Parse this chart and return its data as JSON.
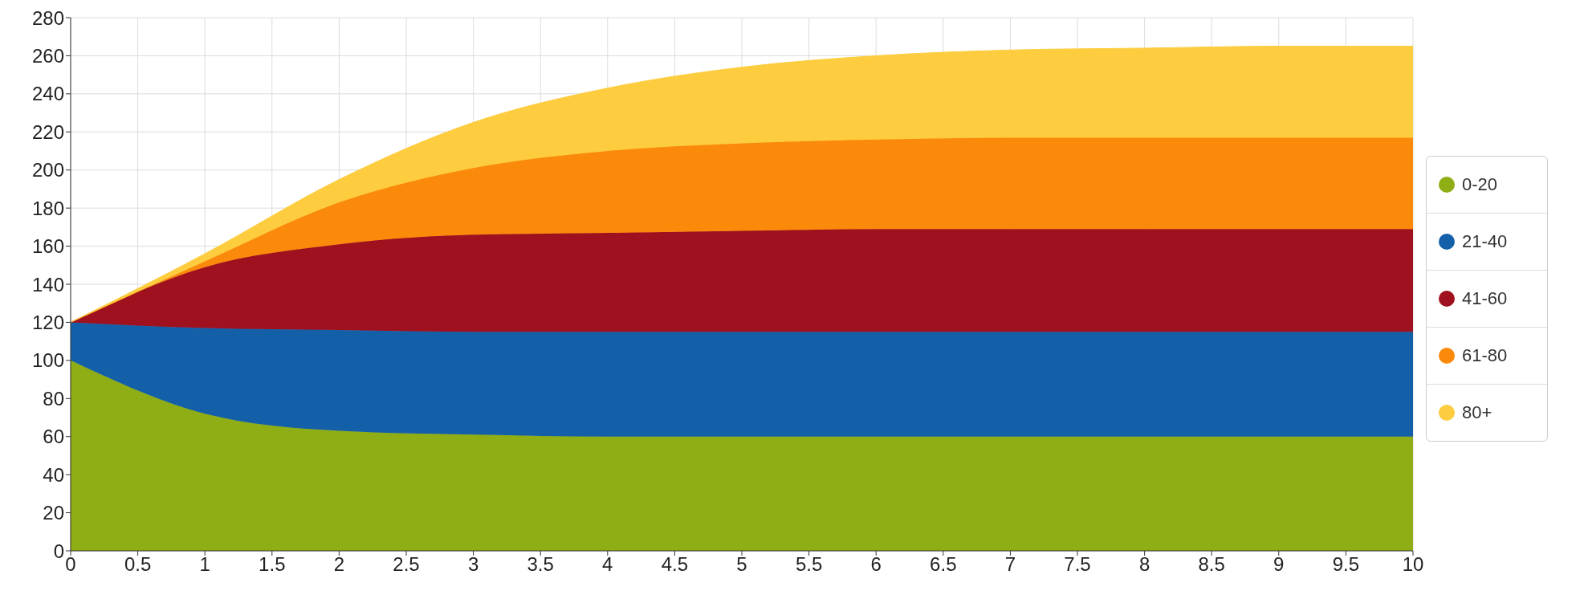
{
  "chart_data": {
    "type": "area",
    "stacked": true,
    "x": [
      0,
      1,
      2,
      3,
      4,
      5,
      6,
      7,
      8,
      9,
      10
    ],
    "series": [
      {
        "name": "0-20",
        "color": "#8fad15",
        "values": [
          100,
          72,
          63,
          61,
          60,
          60,
          60,
          60,
          60,
          60,
          60
        ]
      },
      {
        "name": "21-40",
        "color": "#1460a8",
        "values": [
          20,
          45,
          53,
          54,
          55,
          55,
          55,
          55,
          55,
          55,
          55
        ]
      },
      {
        "name": "41-60",
        "color": "#a0111f",
        "values": [
          0,
          32,
          45,
          51,
          52,
          53,
          54,
          54,
          54,
          54,
          54
        ]
      },
      {
        "name": "61-80",
        "color": "#fb8a0b",
        "values": [
          0,
          3,
          22,
          35,
          43,
          46,
          47,
          48,
          48,
          48,
          48
        ]
      },
      {
        "name": "80+",
        "color": "#fdcd3f",
        "values": [
          0,
          4,
          12,
          24,
          33,
          40,
          44,
          46,
          47,
          48,
          48
        ]
      }
    ],
    "xlim": [
      0,
      10
    ],
    "xticks": [
      0,
      0.5,
      1,
      1.5,
      2,
      2.5,
      3,
      3.5,
      4,
      4.5,
      5,
      5.5,
      6,
      6.5,
      7,
      7.5,
      8,
      8.5,
      9,
      9.5,
      10
    ],
    "ylim": [
      0,
      280
    ],
    "yticks": [
      0,
      20,
      40,
      60,
      80,
      100,
      120,
      140,
      160,
      180,
      200,
      220,
      240,
      260,
      280
    ],
    "grid": true,
    "legend": "right"
  }
}
